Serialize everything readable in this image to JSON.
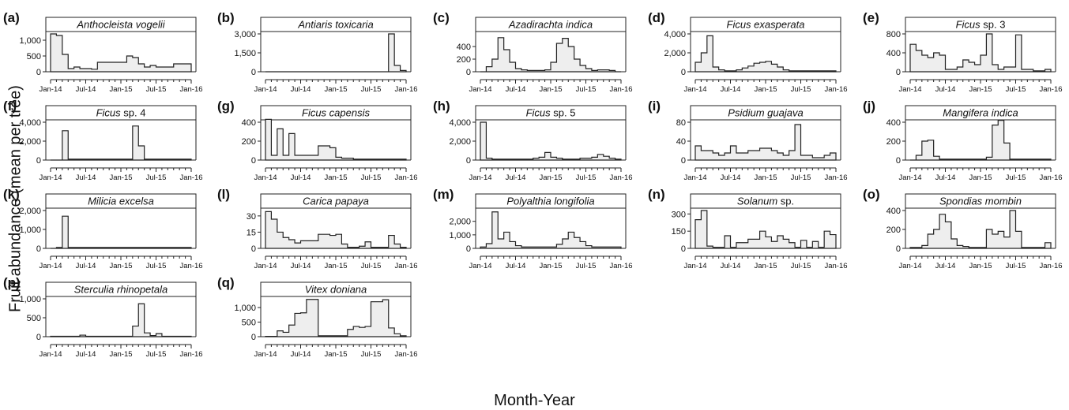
{
  "ylabel": "Fruit abundance (mean per tree)",
  "xlabel": "Month-Year",
  "x_tick_labels": [
    "Jan-14",
    "Jul-14",
    "Jan-15",
    "Jul-15",
    "Jan-16"
  ],
  "colors": {
    "fill": "#eeeeee",
    "line": "#222222"
  },
  "chart_data": [
    {
      "type": "area",
      "step": true,
      "letter": "(a)",
      "title": "Anthocleista vogelii",
      "ylim": [
        0,
        1200
      ],
      "yticks": [
        0,
        500,
        1000
      ],
      "ytick_labels": [
        "0",
        "500",
        "1,000"
      ],
      "x": [
        "Jan-14",
        "Feb-14",
        "Mar-14",
        "Apr-14",
        "May-14",
        "Jun-14",
        "Jul-14",
        "Aug-14",
        "Sep-14",
        "Oct-14",
        "Nov-14",
        "Dec-14",
        "Jan-15",
        "Feb-15",
        "Mar-15",
        "Apr-15",
        "May-15",
        "Jun-15",
        "Jul-15",
        "Aug-15",
        "Sep-15",
        "Oct-15",
        "Nov-15",
        "Dec-15"
      ],
      "values": [
        1200,
        1150,
        550,
        100,
        150,
        100,
        100,
        80,
        300,
        300,
        300,
        300,
        300,
        500,
        450,
        250,
        150,
        200,
        150,
        150,
        150,
        250,
        250,
        250
      ]
    },
    {
      "type": "area",
      "step": true,
      "letter": "(b)",
      "title": "Antiaris toxicaria",
      "ylim": [
        0,
        3000
      ],
      "yticks": [
        0,
        1500,
        3000
      ],
      "ytick_labels": [
        "0",
        "1,500",
        "3,000"
      ],
      "x": [
        "Jan-14",
        "Feb-14",
        "Mar-14",
        "Apr-14",
        "May-14",
        "Jun-14",
        "Jul-14",
        "Aug-14",
        "Sep-14",
        "Oct-14",
        "Nov-14",
        "Dec-14",
        "Jan-15",
        "Feb-15",
        "Mar-15",
        "Apr-15",
        "May-15",
        "Jun-15",
        "Jul-15",
        "Aug-15",
        "Sep-15",
        "Oct-15",
        "Nov-15",
        "Dec-15"
      ],
      "values": [
        0,
        0,
        0,
        0,
        0,
        0,
        0,
        0,
        0,
        0,
        0,
        0,
        0,
        0,
        0,
        0,
        0,
        0,
        0,
        0,
        0,
        3000,
        500,
        100
      ]
    },
    {
      "type": "area",
      "step": true,
      "letter": "(c)",
      "title": "Azadirachta indica",
      "ylim": [
        0,
        600
      ],
      "yticks": [
        0,
        200,
        400
      ],
      "ytick_labels": [
        "0",
        "200",
        "400"
      ],
      "x": [
        "Jan-14",
        "Feb-14",
        "Mar-14",
        "Apr-14",
        "May-14",
        "Jun-14",
        "Jul-14",
        "Aug-14",
        "Sep-14",
        "Oct-14",
        "Nov-14",
        "Dec-14",
        "Jan-15",
        "Feb-15",
        "Mar-15",
        "Apr-15",
        "May-15",
        "Jun-15",
        "Jul-15",
        "Aug-15",
        "Sep-15",
        "Oct-15",
        "Nov-15",
        "Dec-15"
      ],
      "values": [
        0,
        80,
        200,
        540,
        350,
        150,
        50,
        30,
        20,
        20,
        20,
        30,
        150,
        450,
        530,
        400,
        200,
        100,
        50,
        20,
        30,
        30,
        20,
        0
      ]
    },
    {
      "type": "area",
      "step": true,
      "letter": "(d)",
      "title": "Ficus exasperata",
      "ylim": [
        0,
        4000
      ],
      "yticks": [
        0,
        2000,
        4000
      ],
      "ytick_labels": [
        "0",
        "2,000",
        "4,000"
      ],
      "x": [
        "Jan-14",
        "Feb-14",
        "Mar-14",
        "Apr-14",
        "May-14",
        "Jun-14",
        "Jul-14",
        "Aug-14",
        "Sep-14",
        "Oct-14",
        "Nov-14",
        "Dec-14",
        "Jan-15",
        "Feb-15",
        "Mar-15",
        "Apr-15",
        "May-15",
        "Jun-15",
        "Jul-15",
        "Aug-15",
        "Sep-15",
        "Oct-15",
        "Nov-15",
        "Dec-15"
      ],
      "values": [
        1000,
        2000,
        3800,
        500,
        200,
        100,
        100,
        200,
        400,
        600,
        900,
        1000,
        1100,
        800,
        500,
        200,
        100,
        100,
        100,
        100,
        100,
        100,
        100,
        100
      ]
    },
    {
      "type": "area",
      "step": true,
      "letter": "(e)",
      "title": "Ficus sp. 3",
      "ylim": [
        0,
        800
      ],
      "yticks": [
        0,
        400,
        800
      ],
      "ytick_labels": [
        "0",
        "400",
        "800"
      ],
      "x": [
        "Jan-14",
        "Feb-14",
        "Mar-14",
        "Apr-14",
        "May-14",
        "Jun-14",
        "Jul-14",
        "Aug-14",
        "Sep-14",
        "Oct-14",
        "Nov-14",
        "Dec-14",
        "Jan-15",
        "Feb-15",
        "Mar-15",
        "Apr-15",
        "May-15",
        "Jun-15",
        "Jul-15",
        "Aug-15",
        "Sep-15",
        "Oct-15",
        "Nov-15",
        "Dec-15"
      ],
      "values": [
        580,
        450,
        350,
        300,
        400,
        350,
        50,
        50,
        100,
        250,
        200,
        150,
        350,
        800,
        150,
        50,
        100,
        100,
        780,
        50,
        50,
        20,
        20,
        50
      ]
    },
    {
      "type": "area",
      "step": true,
      "letter": "(f)",
      "title": "Ficus sp. 4",
      "ylim": [
        0,
        4000
      ],
      "yticks": [
        0,
        2000,
        4000
      ],
      "ytick_labels": [
        "0",
        "2,000",
        "4,000"
      ],
      "x": [
        "Jan-14",
        "Feb-14",
        "Mar-14",
        "Apr-14",
        "May-14",
        "Jun-14",
        "Jul-14",
        "Aug-14",
        "Sep-14",
        "Oct-14",
        "Nov-14",
        "Dec-14",
        "Jan-15",
        "Feb-15",
        "Mar-15",
        "Apr-15",
        "May-15",
        "Jun-15",
        "Jul-15",
        "Aug-15",
        "Sep-15",
        "Oct-15",
        "Nov-15",
        "Dec-15"
      ],
      "values": [
        0,
        0,
        3100,
        100,
        100,
        100,
        100,
        100,
        100,
        100,
        100,
        100,
        100,
        100,
        3600,
        1500,
        100,
        100,
        100,
        100,
        100,
        100,
        100,
        100
      ]
    },
    {
      "type": "area",
      "step": true,
      "letter": "(g)",
      "title": "Ficus capensis",
      "ylim": [
        0,
        400
      ],
      "yticks": [
        0,
        200,
        400
      ],
      "ytick_labels": [
        "0",
        "200",
        "400"
      ],
      "x": [
        "Jan-14",
        "Feb-14",
        "Mar-14",
        "Apr-14",
        "May-14",
        "Jun-14",
        "Jul-14",
        "Aug-14",
        "Sep-14",
        "Oct-14",
        "Nov-14",
        "Dec-14",
        "Jan-15",
        "Feb-15",
        "Mar-15",
        "Apr-15",
        "May-15",
        "Jun-15",
        "Jul-15",
        "Aug-15",
        "Sep-15",
        "Oct-15",
        "Nov-15",
        "Dec-15"
      ],
      "values": [
        430,
        50,
        330,
        50,
        280,
        50,
        50,
        50,
        50,
        150,
        150,
        130,
        30,
        20,
        20,
        10,
        10,
        10,
        10,
        10,
        10,
        10,
        10,
        10
      ]
    },
    {
      "type": "area",
      "step": true,
      "letter": "(h)",
      "title": "Ficus sp. 5",
      "ylim": [
        0,
        4000
      ],
      "yticks": [
        0,
        2000,
        4000
      ],
      "ytick_labels": [
        "0",
        "2,000",
        "4,000"
      ],
      "x": [
        "Jan-14",
        "Feb-14",
        "Mar-14",
        "Apr-14",
        "May-14",
        "Jun-14",
        "Jul-14",
        "Aug-14",
        "Sep-14",
        "Oct-14",
        "Nov-14",
        "Dec-14",
        "Jan-15",
        "Feb-15",
        "Mar-15",
        "Apr-15",
        "May-15",
        "Jun-15",
        "Jul-15",
        "Aug-15",
        "Sep-15",
        "Oct-15",
        "Nov-15",
        "Dec-15"
      ],
      "values": [
        4000,
        200,
        100,
        100,
        100,
        100,
        100,
        100,
        100,
        200,
        300,
        800,
        300,
        200,
        100,
        100,
        100,
        200,
        200,
        300,
        600,
        400,
        200,
        100
      ]
    },
    {
      "type": "area",
      "step": true,
      "letter": "(i)",
      "title": "Psidium guajava",
      "ylim": [
        0,
        80
      ],
      "yticks": [
        0,
        40,
        80
      ],
      "ytick_labels": [
        "0",
        "40",
        "80"
      ],
      "x": [
        "Jan-14",
        "Feb-14",
        "Mar-14",
        "Apr-14",
        "May-14",
        "Jun-14",
        "Jul-14",
        "Aug-14",
        "Sep-14",
        "Oct-14",
        "Nov-14",
        "Dec-14",
        "Jan-15",
        "Feb-15",
        "Mar-15",
        "Apr-15",
        "May-15",
        "Jun-15",
        "Jul-15",
        "Aug-15",
        "Sep-15",
        "Oct-15",
        "Nov-15",
        "Dec-15"
      ],
      "values": [
        30,
        20,
        20,
        15,
        10,
        15,
        30,
        15,
        15,
        20,
        20,
        25,
        25,
        20,
        15,
        10,
        20,
        75,
        10,
        10,
        5,
        5,
        10,
        15
      ]
    },
    {
      "type": "area",
      "step": true,
      "letter": "(j)",
      "title": "Mangifera indica",
      "ylim": [
        0,
        400
      ],
      "yticks": [
        0,
        200,
        400
      ],
      "ytick_labels": [
        "0",
        "200",
        "400"
      ],
      "x": [
        "Jan-14",
        "Feb-14",
        "Mar-14",
        "Apr-14",
        "May-14",
        "Jun-14",
        "Jul-14",
        "Aug-14",
        "Sep-14",
        "Oct-14",
        "Nov-14",
        "Dec-14",
        "Jan-15",
        "Feb-15",
        "Mar-15",
        "Apr-15",
        "May-15",
        "Jun-15",
        "Jul-15",
        "Aug-15",
        "Sep-15",
        "Oct-15",
        "Nov-15",
        "Dec-15"
      ],
      "values": [
        0,
        50,
        200,
        210,
        40,
        10,
        10,
        10,
        10,
        10,
        10,
        10,
        10,
        30,
        370,
        420,
        180,
        10,
        10,
        10,
        10,
        10,
        10,
        10
      ]
    },
    {
      "type": "area",
      "step": true,
      "letter": "(k)",
      "title": "Milicia excelsa",
      "ylim": [
        0,
        2000
      ],
      "yticks": [
        0,
        1000,
        2000
      ],
      "ytick_labels": [
        "0",
        "1,000",
        "2,000"
      ],
      "x": [
        "Jan-14",
        "Feb-14",
        "Mar-14",
        "Apr-14",
        "May-14",
        "Jun-14",
        "Jul-14",
        "Aug-14",
        "Sep-14",
        "Oct-14",
        "Nov-14",
        "Dec-14",
        "Jan-15",
        "Feb-15",
        "Mar-15",
        "Apr-15",
        "May-15",
        "Jun-15",
        "Jul-15",
        "Aug-15",
        "Sep-15",
        "Oct-15",
        "Nov-15",
        "Dec-15"
      ],
      "values": [
        0,
        50,
        1700,
        50,
        50,
        50,
        50,
        50,
        50,
        50,
        50,
        50,
        50,
        50,
        50,
        50,
        50,
        50,
        50,
        50,
        50,
        50,
        50,
        50
      ]
    },
    {
      "type": "area",
      "step": true,
      "letter": "(l)",
      "title": "Carica papaya",
      "ylim": [
        0,
        35
      ],
      "yticks": [
        0,
        15,
        30
      ],
      "ytick_labels": [
        "0",
        "15",
        "30"
      ],
      "x": [
        "Jan-14",
        "Feb-14",
        "Mar-14",
        "Apr-14",
        "May-14",
        "Jun-14",
        "Jul-14",
        "Aug-14",
        "Sep-14",
        "Oct-14",
        "Nov-14",
        "Dec-14",
        "Jan-15",
        "Feb-15",
        "Mar-15",
        "Apr-15",
        "May-15",
        "Jun-15",
        "Jul-15",
        "Aug-15",
        "Sep-15",
        "Oct-15",
        "Nov-15",
        "Dec-15"
      ],
      "values": [
        34,
        27,
        15,
        10,
        8,
        5,
        7,
        7,
        7,
        13,
        13,
        12,
        13,
        4,
        1,
        1,
        2,
        6,
        1,
        1,
        1,
        12,
        4,
        1
      ]
    },
    {
      "type": "area",
      "step": true,
      "letter": "(m)",
      "title": "Polyalthia longifolia",
      "ylim": [
        0,
        2800
      ],
      "yticks": [
        0,
        1000,
        2000
      ],
      "ytick_labels": [
        "0",
        "1,000",
        "2,000"
      ],
      "x": [
        "Jan-14",
        "Feb-14",
        "Mar-14",
        "Apr-14",
        "May-14",
        "Jun-14",
        "Jul-14",
        "Aug-14",
        "Sep-14",
        "Oct-14",
        "Nov-14",
        "Dec-14",
        "Jan-15",
        "Feb-15",
        "Mar-15",
        "Apr-15",
        "May-15",
        "Jun-15",
        "Jul-15",
        "Aug-15",
        "Sep-15",
        "Oct-15",
        "Nov-15",
        "Dec-15"
      ],
      "values": [
        100,
        350,
        2700,
        700,
        1200,
        500,
        200,
        100,
        100,
        100,
        100,
        100,
        100,
        300,
        700,
        1200,
        800,
        500,
        200,
        100,
        100,
        100,
        100,
        100
      ]
    },
    {
      "type": "area",
      "step": true,
      "letter": "(n)",
      "title": "Solanum sp.",
      "ylim": [
        0,
        330
      ],
      "yticks": [
        0,
        150,
        300
      ],
      "ytick_labels": [
        "0",
        "150",
        "300"
      ],
      "x": [
        "Jan-14",
        "Feb-14",
        "Mar-14",
        "Apr-14",
        "May-14",
        "Jun-14",
        "Jul-14",
        "Aug-14",
        "Sep-14",
        "Oct-14",
        "Nov-14",
        "Dec-14",
        "Jan-15",
        "Feb-15",
        "Mar-15",
        "Apr-15",
        "May-15",
        "Jun-15",
        "Jul-15",
        "Aug-15",
        "Sep-15",
        "Oct-15",
        "Nov-15",
        "Dec-15"
      ],
      "values": [
        250,
        330,
        20,
        10,
        10,
        110,
        10,
        50,
        50,
        80,
        80,
        150,
        100,
        60,
        110,
        80,
        50,
        10,
        70,
        10,
        60,
        10,
        150,
        120
      ]
    },
    {
      "type": "area",
      "step": true,
      "letter": "(o)",
      "title": "Spondias mombin",
      "ylim": [
        0,
        400
      ],
      "yticks": [
        0,
        200,
        400
      ],
      "ytick_labels": [
        "0",
        "200",
        "400"
      ],
      "x": [
        "Jan-14",
        "Feb-14",
        "Mar-14",
        "Apr-14",
        "May-14",
        "Jun-14",
        "Jul-14",
        "Aug-14",
        "Sep-14",
        "Oct-14",
        "Nov-14",
        "Dec-14",
        "Jan-15",
        "Feb-15",
        "Mar-15",
        "Apr-15",
        "May-15",
        "Jun-15",
        "Jul-15",
        "Aug-15",
        "Sep-15",
        "Oct-15",
        "Nov-15",
        "Dec-15"
      ],
      "values": [
        10,
        10,
        30,
        150,
        200,
        360,
        280,
        100,
        30,
        20,
        10,
        10,
        10,
        200,
        150,
        180,
        120,
        400,
        180,
        10,
        10,
        10,
        10,
        60
      ]
    },
    {
      "type": "area",
      "step": true,
      "letter": "(p)",
      "title": "Sterculia rhinopetala",
      "ylim": [
        0,
        1000
      ],
      "yticks": [
        0,
        500,
        1000
      ],
      "ytick_labels": [
        "0",
        "500",
        "1,000"
      ],
      "x": [
        "Jan-14",
        "Feb-14",
        "Mar-14",
        "Apr-14",
        "May-14",
        "Jun-14",
        "Jul-14",
        "Aug-14",
        "Sep-14",
        "Oct-14",
        "Nov-14",
        "Dec-14",
        "Jan-15",
        "Feb-15",
        "Mar-15",
        "Apr-15",
        "May-15",
        "Jun-15",
        "Jul-15",
        "Aug-15",
        "Sep-15",
        "Oct-15",
        "Nov-15",
        "Dec-15"
      ],
      "values": [
        10,
        10,
        10,
        10,
        10,
        40,
        10,
        10,
        10,
        10,
        10,
        10,
        10,
        10,
        280,
        870,
        100,
        30,
        80,
        10,
        10,
        10,
        10,
        10
      ]
    },
    {
      "type": "area",
      "step": true,
      "letter": "(q)",
      "title": "Vitex doniana",
      "ylim": [
        0,
        1300
      ],
      "yticks": [
        0,
        500,
        1000
      ],
      "ytick_labels": [
        "0",
        "500",
        "1,000"
      ],
      "x": [
        "Jan-14",
        "Feb-14",
        "Mar-14",
        "Apr-14",
        "May-14",
        "Jun-14",
        "Jul-14",
        "Aug-14",
        "Sep-14",
        "Oct-14",
        "Nov-14",
        "Dec-14",
        "Jan-15",
        "Feb-15",
        "Mar-15",
        "Apr-15",
        "May-15",
        "Jun-15",
        "Jul-15",
        "Aug-15",
        "Sep-15",
        "Oct-15",
        "Nov-15",
        "Dec-15"
      ],
      "values": [
        10,
        10,
        200,
        150,
        400,
        800,
        820,
        1280,
        1280,
        30,
        30,
        30,
        30,
        30,
        250,
        350,
        320,
        350,
        1200,
        1200,
        1270,
        300,
        100,
        30
      ]
    }
  ]
}
